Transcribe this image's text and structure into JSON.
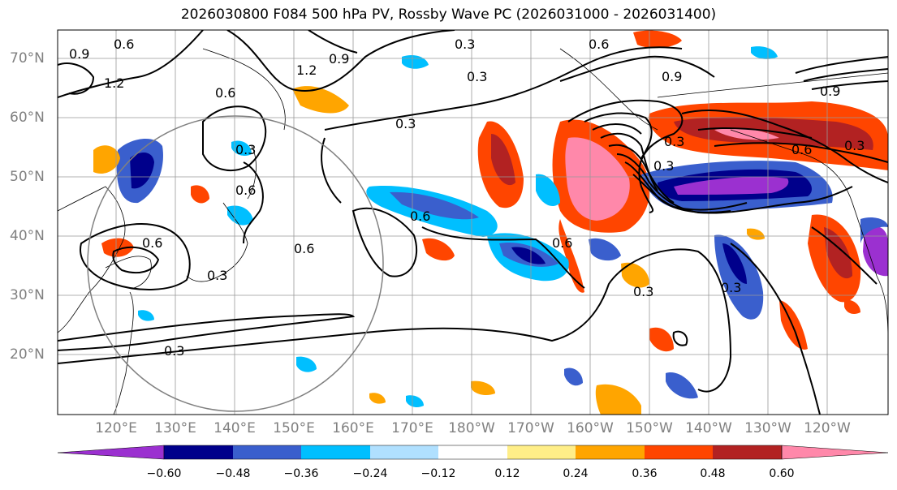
{
  "title": "2026030800 F084 500 hPa PV, Rossby Wave PC (2026031000 - 2026031400)",
  "lat_labels": [
    "70°N",
    "60°N",
    "50°N",
    "40°N",
    "30°N",
    "20°N"
  ],
  "lon_labels": [
    "120°E",
    "130°E",
    "140°E",
    "150°E",
    "160°E",
    "170°E",
    "180°W",
    "170°W",
    "160°W",
    "150°W",
    "140°W",
    "130°W",
    "120°W"
  ],
  "contour_labels": [
    "0.9",
    "0.6",
    "1.2",
    "0.9",
    "0.6",
    "0.6",
    "0.3",
    "0.3",
    "0.9",
    "0.3",
    "0.6",
    "0.6",
    "0.3",
    "1.2",
    "0.6",
    "0.9",
    "0.3",
    "0.6",
    "0.3",
    "0.3",
    "0.3",
    "0.6",
    "0.6",
    "0.3",
    "0.3",
    "0.3"
  ],
  "colorbar": {
    "tick_labels": [
      "−0.60",
      "−0.48",
      "−0.36",
      "−0.24",
      "−0.12",
      "0.12",
      "0.24",
      "0.36",
      "0.48",
      "0.60"
    ],
    "colors": [
      "#9b30d0",
      "#00008b",
      "#3a5fcd",
      "#00bfff",
      "#b0e0ff",
      "#ffffff",
      "#ffee88",
      "#ffa500",
      "#ff4500",
      "#b22222",
      "#ff88aa"
    ]
  },
  "colors": {
    "purple": "#9b30d0",
    "navy": "#00008b",
    "blue": "#3a5fcd",
    "sky": "#00bfff",
    "light_blue": "#b0e0ff",
    "yellow": "#ffee88",
    "orange": "#ffa500",
    "red_orange": "#ff4500",
    "dark_red": "#b22222",
    "pink": "#ff88aa"
  }
}
